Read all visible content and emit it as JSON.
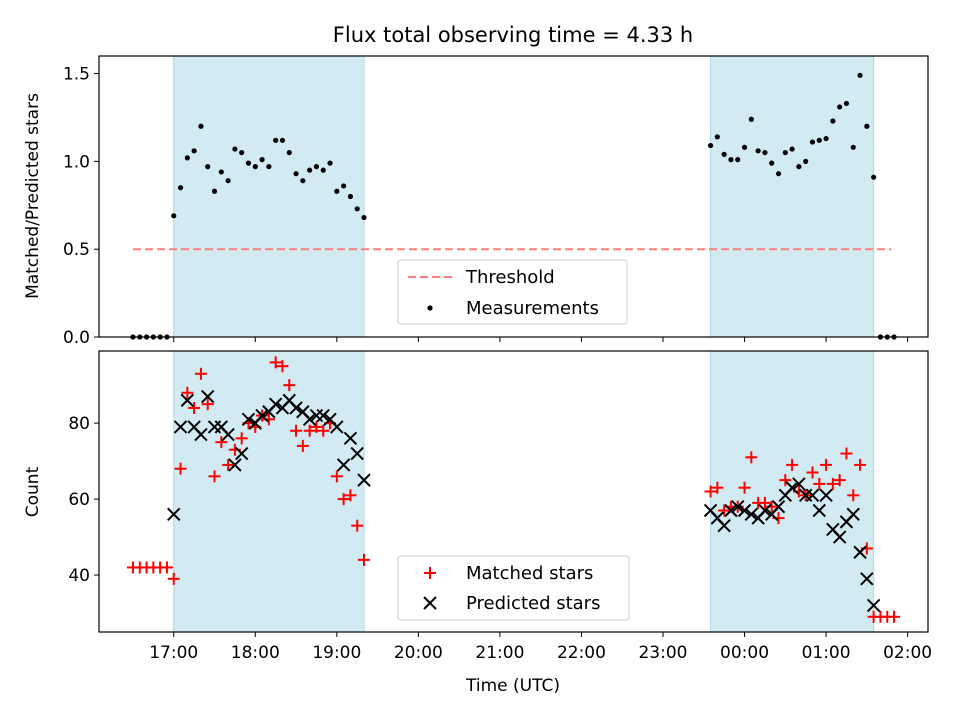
{
  "figure_title": "Flux total observing time = 4.33 h",
  "chart_data": [
    {
      "type": "scatter",
      "panel": "top",
      "title": "Flux total observing time = 4.33 h",
      "ylabel": "Matched/Predicted stars",
      "xlabel": "",
      "x_unit": "Time (UTC)",
      "x_note": "times after 24:00 are on the following day",
      "xlim": [
        "16:05",
        "02:15"
      ],
      "ylim": [
        0,
        1.6
      ],
      "yticks": [
        "0.0",
        "0.5",
        "1.0",
        "1.5"
      ],
      "xticks": [
        "17:00",
        "18:00",
        "19:00",
        "20:00",
        "21:00",
        "22:00",
        "23:00",
        "00:00",
        "01:00",
        "02:00"
      ],
      "shaded_intervals": [
        [
          "17:00",
          "19:20"
        ],
        [
          "23:35",
          "01:35"
        ]
      ],
      "threshold": {
        "label": "Threshold",
        "value": 0.5,
        "x_range": [
          "16:30",
          "01:48"
        ],
        "color": "#ff7f7f"
      },
      "legend": {
        "position": "lower center",
        "entries": [
          "Threshold",
          "Measurements"
        ]
      },
      "series": [
        {
          "name": "Measurements",
          "color": "#000000",
          "points": [
            [
              "16:30",
              0
            ],
            [
              "16:35",
              0
            ],
            [
              "16:40",
              0
            ],
            [
              "16:45",
              0
            ],
            [
              "16:50",
              0
            ],
            [
              "16:55",
              0
            ],
            [
              "17:00",
              0.69
            ],
            [
              "17:05",
              0.85
            ],
            [
              "17:10",
              1.02
            ],
            [
              "17:15",
              1.06
            ],
            [
              "17:20",
              1.2
            ],
            [
              "17:25",
              0.97
            ],
            [
              "17:30",
              0.83
            ],
            [
              "17:35",
              0.94
            ],
            [
              "17:40",
              0.89
            ],
            [
              "17:45",
              1.07
            ],
            [
              "17:50",
              1.05
            ],
            [
              "17:55",
              0.99
            ],
            [
              "18:00",
              0.97
            ],
            [
              "18:05",
              1.01
            ],
            [
              "18:10",
              0.97
            ],
            [
              "18:15",
              1.12
            ],
            [
              "18:20",
              1.12
            ],
            [
              "18:25",
              1.05
            ],
            [
              "18:30",
              0.93
            ],
            [
              "18:35",
              0.89
            ],
            [
              "18:40",
              0.95
            ],
            [
              "18:45",
              0.97
            ],
            [
              "18:50",
              0.95
            ],
            [
              "18:55",
              0.99
            ],
            [
              "19:00",
              0.83
            ],
            [
              "19:05",
              0.86
            ],
            [
              "19:10",
              0.8
            ],
            [
              "19:15",
              0.73
            ],
            [
              "19:20",
              0.68
            ],
            [
              "23:35",
              1.09
            ],
            [
              "23:40",
              1.14
            ],
            [
              "23:45",
              1.04
            ],
            [
              "23:50",
              1.01
            ],
            [
              "23:55",
              1.01
            ],
            [
              "24:00",
              1.08
            ],
            [
              "24:05",
              1.24
            ],
            [
              "24:10",
              1.06
            ],
            [
              "24:15",
              1.05
            ],
            [
              "24:20",
              0.99
            ],
            [
              "24:25",
              0.93
            ],
            [
              "24:30",
              1.05
            ],
            [
              "24:35",
              1.07
            ],
            [
              "24:40",
              0.97
            ],
            [
              "24:45",
              1.0
            ],
            [
              "24:50",
              1.11
            ],
            [
              "24:55",
              1.12
            ],
            [
              "25:00",
              1.13
            ],
            [
              "25:05",
              1.23
            ],
            [
              "25:10",
              1.31
            ],
            [
              "25:15",
              1.33
            ],
            [
              "25:20",
              1.08
            ],
            [
              "25:25",
              1.49
            ],
            [
              "25:30",
              1.2
            ],
            [
              "25:35",
              0.91
            ],
            [
              "25:40",
              0
            ],
            [
              "25:45",
              0
            ],
            [
              "25:50",
              0
            ]
          ]
        }
      ]
    },
    {
      "type": "scatter",
      "panel": "bottom",
      "title": "",
      "xlabel": "Time (UTC)",
      "ylabel": "Count",
      "xlim": [
        "16:05",
        "02:15"
      ],
      "ylim": [
        25,
        99
      ],
      "yticks": [
        "40",
        "60",
        "80"
      ],
      "xticks": [
        "17:00",
        "18:00",
        "19:00",
        "20:00",
        "21:00",
        "22:00",
        "23:00",
        "00:00",
        "01:00",
        "02:00"
      ],
      "shaded_intervals": [
        [
          "17:00",
          "19:20"
        ],
        [
          "23:35",
          "01:35"
        ]
      ],
      "legend": {
        "position": "lower center",
        "entries": [
          "Matched stars",
          "Predicted stars"
        ]
      },
      "series": [
        {
          "name": "Matched stars",
          "marker": "plus",
          "color": "#ff0000",
          "points": [
            [
              "16:30",
              42
            ],
            [
              "16:35",
              42
            ],
            [
              "16:40",
              42
            ],
            [
              "16:45",
              42
            ],
            [
              "16:50",
              42
            ],
            [
              "16:55",
              42
            ],
            [
              "17:00",
              39
            ],
            [
              "17:05",
              68
            ],
            [
              "17:10",
              88
            ],
            [
              "17:15",
              84
            ],
            [
              "17:20",
              93
            ],
            [
              "17:25",
              85
            ],
            [
              "17:30",
              66
            ],
            [
              "17:35",
              75
            ],
            [
              "17:40",
              69
            ],
            [
              "17:45",
              73
            ],
            [
              "17:50",
              76
            ],
            [
              "17:55",
              80
            ],
            [
              "18:00",
              79
            ],
            [
              "18:05",
              82
            ],
            [
              "18:10",
              81
            ],
            [
              "18:15",
              96
            ],
            [
              "18:20",
              95
            ],
            [
              "18:25",
              90
            ],
            [
              "18:30",
              78
            ],
            [
              "18:35",
              74
            ],
            [
              "18:40",
              78
            ],
            [
              "18:45",
              79
            ],
            [
              "18:50",
              78
            ],
            [
              "18:55",
              80
            ],
            [
              "19:00",
              66
            ],
            [
              "19:05",
              60
            ],
            [
              "19:10",
              61
            ],
            [
              "19:15",
              53
            ],
            [
              "19:20",
              44
            ],
            [
              "23:35",
              62
            ],
            [
              "23:40",
              63
            ],
            [
              "23:45",
              57
            ],
            [
              "23:50",
              58
            ],
            [
              "23:55",
              58
            ],
            [
              "24:00",
              63
            ],
            [
              "24:05",
              71
            ],
            [
              "24:10",
              59
            ],
            [
              "24:15",
              59
            ],
            [
              "24:20",
              58
            ],
            [
              "24:25",
              55
            ],
            [
              "24:30",
              65
            ],
            [
              "24:35",
              69
            ],
            [
              "24:40",
              62
            ],
            [
              "24:45",
              61
            ],
            [
              "24:50",
              67
            ],
            [
              "24:55",
              64
            ],
            [
              "25:00",
              69
            ],
            [
              "25:05",
              64
            ],
            [
              "25:10",
              65
            ],
            [
              "25:15",
              72
            ],
            [
              "25:20",
              61
            ],
            [
              "25:25",
              69
            ],
            [
              "25:30",
              47
            ],
            [
              "25:35",
              29
            ],
            [
              "25:40",
              29
            ],
            [
              "25:45",
              29
            ],
            [
              "25:50",
              29
            ]
          ]
        },
        {
          "name": "Predicted stars",
          "marker": "x",
          "color": "#000000",
          "points": [
            [
              "17:00",
              56
            ],
            [
              "17:05",
              79
            ],
            [
              "17:10",
              86
            ],
            [
              "17:15",
              79
            ],
            [
              "17:20",
              77
            ],
            [
              "17:25",
              87
            ],
            [
              "17:30",
              79
            ],
            [
              "17:35",
              79
            ],
            [
              "17:40",
              77
            ],
            [
              "17:45",
              69
            ],
            [
              "17:50",
              72
            ],
            [
              "17:55",
              81
            ],
            [
              "18:00",
              80
            ],
            [
              "18:05",
              82
            ],
            [
              "18:10",
              83
            ],
            [
              "18:15",
              85
            ],
            [
              "18:20",
              84
            ],
            [
              "18:25",
              86
            ],
            [
              "18:30",
              84
            ],
            [
              "18:35",
              83
            ],
            [
              "18:40",
              81
            ],
            [
              "18:45",
              82
            ],
            [
              "18:50",
              82
            ],
            [
              "18:55",
              81
            ],
            [
              "19:00",
              79
            ],
            [
              "19:05",
              69
            ],
            [
              "19:10",
              76
            ],
            [
              "19:15",
              72
            ],
            [
              "19:20",
              65
            ],
            [
              "23:35",
              57
            ],
            [
              "23:40",
              55
            ],
            [
              "23:45",
              53
            ],
            [
              "23:50",
              57
            ],
            [
              "23:55",
              58
            ],
            [
              "24:00",
              57
            ],
            [
              "24:05",
              56
            ],
            [
              "24:10",
              55
            ],
            [
              "24:15",
              57
            ],
            [
              "24:20",
              56
            ],
            [
              "24:25",
              58
            ],
            [
              "24:30",
              61
            ],
            [
              "24:35",
              63
            ],
            [
              "24:40",
              64
            ],
            [
              "24:45",
              61
            ],
            [
              "24:50",
              61
            ],
            [
              "24:55",
              57
            ],
            [
              "25:00",
              61
            ],
            [
              "25:05",
              52
            ],
            [
              "25:10",
              50
            ],
            [
              "25:15",
              54
            ],
            [
              "25:20",
              56
            ],
            [
              "25:25",
              46
            ],
            [
              "25:30",
              39
            ],
            [
              "25:35",
              32
            ]
          ]
        }
      ]
    }
  ]
}
